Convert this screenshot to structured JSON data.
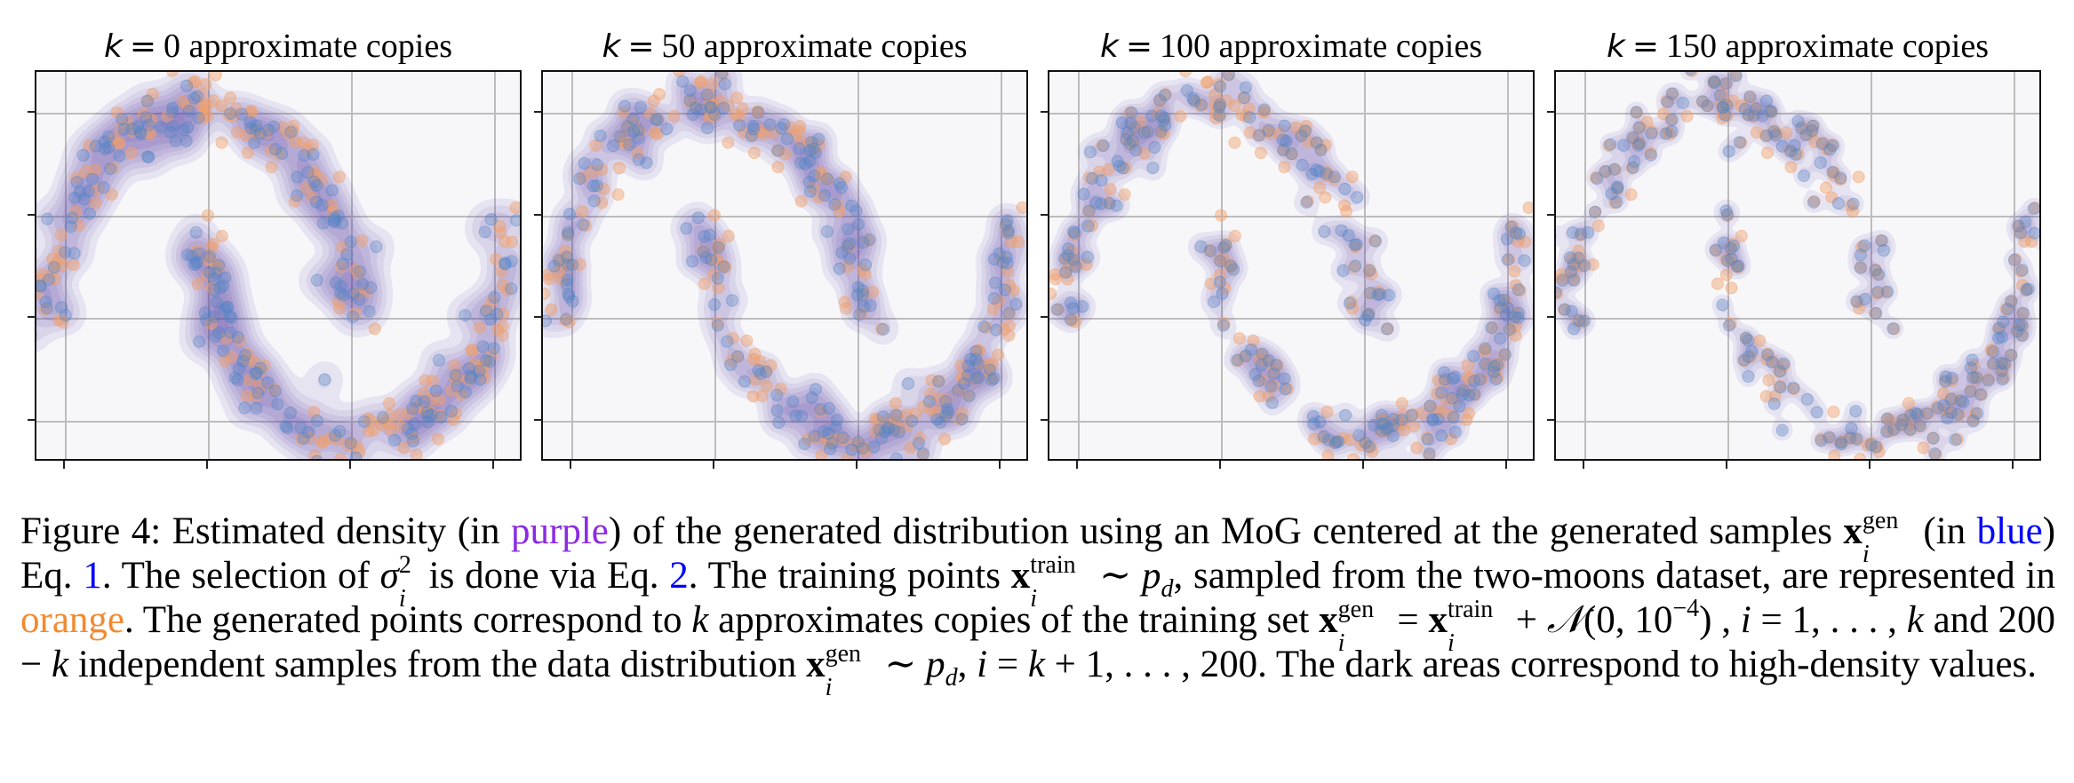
{
  "figure": {
    "panels": [
      {
        "title_k": "k",
        "title_eq": "=",
        "title_value": "0",
        "title_suffix": "approximate copies",
        "k": 0
      },
      {
        "title_k": "k",
        "title_eq": "=",
        "title_value": "50",
        "title_suffix": "approximate copies",
        "k": 50
      },
      {
        "title_k": "k",
        "title_eq": "=",
        "title_value": "100",
        "title_suffix": "approximate copies",
        "k": 100
      },
      {
        "title_k": "k",
        "title_eq": "=",
        "title_value": "150",
        "title_suffix": "approximate copies",
        "k": 150
      }
    ],
    "colors": {
      "generated_points": "#4f86c6",
      "training_points": "#f2a06a",
      "density": "#4b2d9b",
      "panel_background": "#f7f7fa",
      "grid": "#bdbdbd",
      "purple_word": "#8a2be2",
      "blue_word": "#0000ff",
      "orange_word": "#f28a30"
    }
  },
  "chart_data": [
    {
      "type": "scatter",
      "title": "k = 0 approximate copies",
      "xlabel": "",
      "ylabel": "",
      "tick_labels_visible": false,
      "grid": true,
      "x_gridlines": 4,
      "y_gridlines": 4,
      "series": [
        {
          "name": "generated samples (blue)",
          "count": 200,
          "approximate_copies": 0
        },
        {
          "name": "training points (orange)",
          "count": 200,
          "dataset": "two-moons"
        },
        {
          "name": "estimated density (purple, MoG)",
          "kind": "filled-contour"
        }
      ]
    },
    {
      "type": "scatter",
      "title": "k = 50 approximate copies",
      "tick_labels_visible": false,
      "grid": true,
      "series": [
        {
          "name": "generated samples (blue)",
          "count": 200,
          "approximate_copies": 50
        },
        {
          "name": "training points (orange)",
          "count": 200,
          "dataset": "two-moons"
        },
        {
          "name": "estimated density (purple, MoG)",
          "kind": "filled-contour"
        }
      ]
    },
    {
      "type": "scatter",
      "title": "k = 100 approximate copies",
      "tick_labels_visible": false,
      "grid": true,
      "series": [
        {
          "name": "generated samples (blue)",
          "count": 200,
          "approximate_copies": 100
        },
        {
          "name": "training points (orange)",
          "count": 200,
          "dataset": "two-moons"
        },
        {
          "name": "estimated density (purple, MoG)",
          "kind": "filled-contour"
        }
      ]
    },
    {
      "type": "scatter",
      "title": "k = 150 approximate copies",
      "tick_labels_visible": false,
      "grid": true,
      "series": [
        {
          "name": "generated samples (blue)",
          "count": 200,
          "approximate_copies": 150
        },
        {
          "name": "training points (orange)",
          "count": 200,
          "dataset": "two-moons"
        },
        {
          "name": "estimated density (purple, MoG)",
          "kind": "filled-contour"
        }
      ]
    }
  ],
  "caption": {
    "label": "Figure 4:",
    "t1": " Estimated density (in ",
    "purple": "purple",
    "t2": ") of the generated distribution using an MoG centered at the generated samples ",
    "x": "x",
    "gen": "gen",
    "i": "i",
    "t3": " (in ",
    "blue": "blue",
    "t4": ") Eq. ",
    "eq1": "1",
    "t5": ". The selection of ",
    "sigma": "σ",
    "two": "2",
    "t6": " is done via Eq. ",
    "eq2": "2",
    "t7": ". The training points ",
    "train": "train",
    "t8": " ∼ ",
    "p": "p",
    "d": "d",
    "t9": ", sampled from the two-moons dataset, are represented in ",
    "orange": "orange",
    "t10": ". The generated points correspond to ",
    "k": "k",
    "t11": " approximates copies of the training set ",
    "t12": " = ",
    "t13": " + ",
    "N": "𝒩",
    "t14": "(0, 10",
    "neg4": "−4",
    "t15": ") , ",
    "t16": " = 1, . . . , ",
    "t17": " and 200 − ",
    "t18": " independent samples from the data distribution ",
    "t19": " ∼ ",
    "t20": ", ",
    "t21": " = ",
    "t22": " + 1, . . . , 200. The dark areas correspond to high-density values."
  }
}
